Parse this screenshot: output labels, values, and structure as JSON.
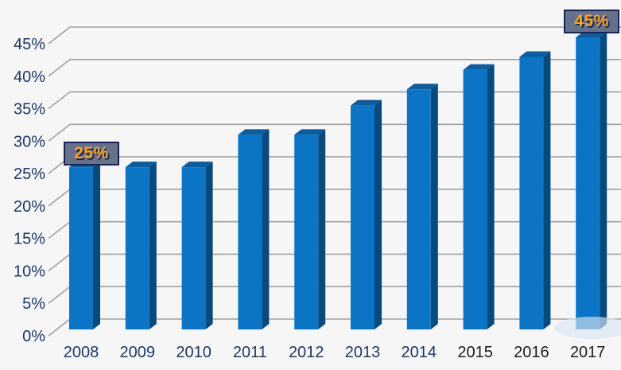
{
  "page": {
    "background": "#f6f6f6"
  },
  "chart_data": {
    "type": "bar",
    "style": "3d-perspective-columns",
    "title": "",
    "xlabel": "",
    "ylabel": "",
    "categories": [
      "2008",
      "2009",
      "2010",
      "2011",
      "2012",
      "2013",
      "2014",
      "2015",
      "2016",
      "2017"
    ],
    "values": [
      25,
      25,
      25,
      30,
      30,
      34.5,
      37,
      40,
      42,
      45
    ],
    "unit": "%",
    "ylim": [
      0,
      45
    ],
    "ytick_step": 5,
    "ytick_labels": [
      "0%",
      "5%",
      "10%",
      "15%",
      "20%",
      "25%",
      "30%",
      "35%",
      "40%",
      "45%"
    ],
    "grid": true,
    "legend": "none",
    "annotations": [
      {
        "for_category": "2008",
        "label": "25%"
      },
      {
        "for_category": "2017",
        "label": "45%"
      }
    ],
    "colors": {
      "background": "#f6f6f6",
      "gridline": "#a0a0a0",
      "bar_front": "#0b74c4",
      "bar_side": "#064a7e",
      "bar_top": "#0d5c9c",
      "axis_text": "#1f3864",
      "x_tick_colors": [
        "#1f3864",
        "#1f3864",
        "#1f3864",
        "#1f3864",
        "#1f3864",
        "#1f3864",
        "#1f3864",
        "#1b1d20",
        "#1b1d20",
        "#1b1d20"
      ],
      "annotation_bg": "#66718c",
      "annotation_border": "#16245a",
      "annotation_text": "#f7a41d",
      "smudge": "#d9e7f4"
    }
  }
}
